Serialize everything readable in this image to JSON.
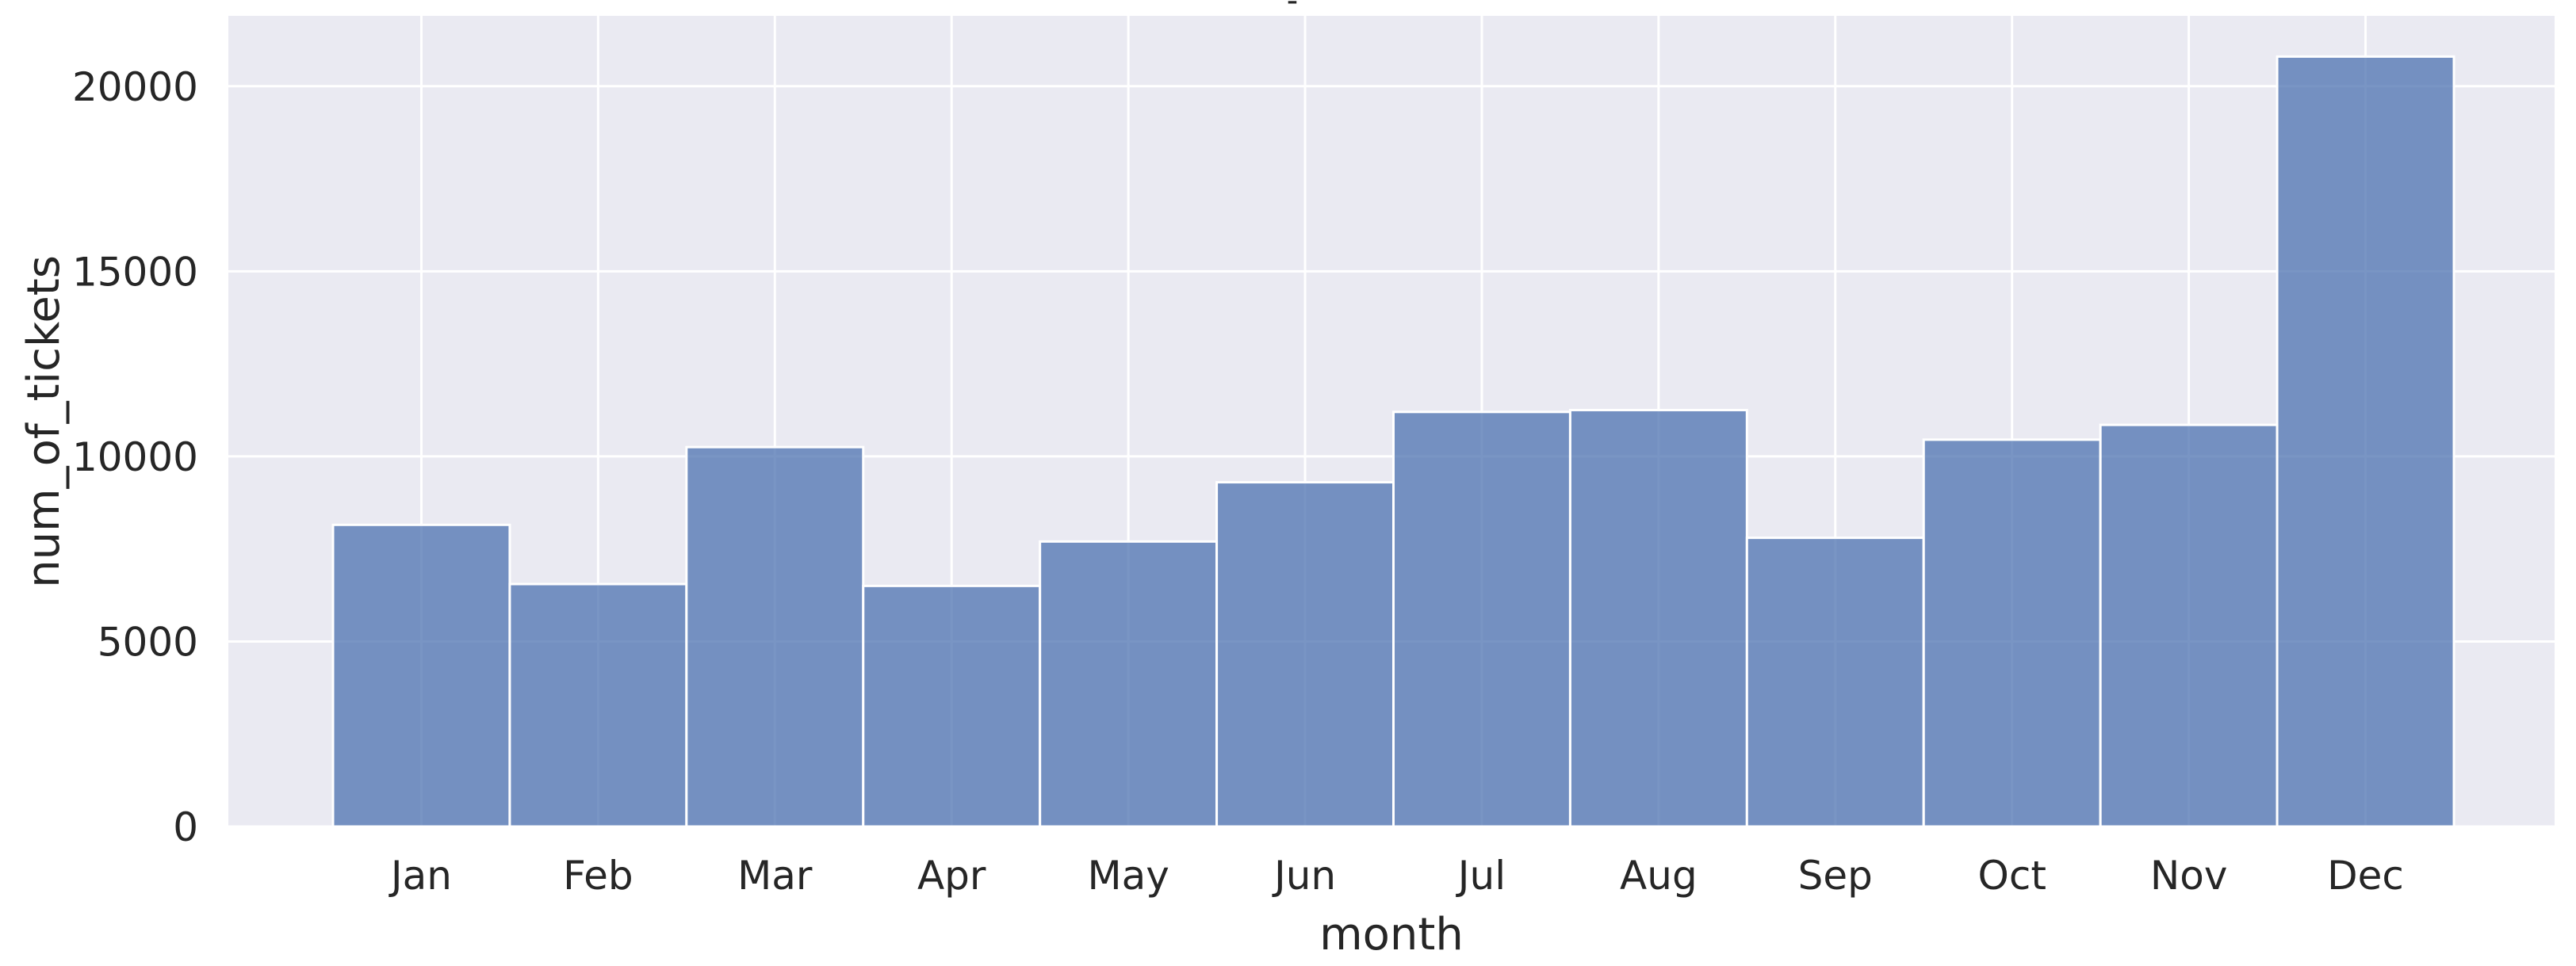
{
  "chart_data": {
    "type": "bar",
    "title": "-",
    "xlabel": "month",
    "ylabel": "num_of_tickets",
    "categories": [
      "Jan",
      "Feb",
      "Mar",
      "Apr",
      "May",
      "Jun",
      "Jul",
      "Aug",
      "Sep",
      "Oct",
      "Nov",
      "Dec"
    ],
    "values": [
      8150,
      6550,
      10250,
      6500,
      7700,
      9300,
      11200,
      11250,
      7800,
      10450,
      10850,
      20800
    ],
    "yticks": [
      0,
      5000,
      10000,
      15000,
      20000
    ],
    "ylim": [
      0,
      21900
    ],
    "grid": true,
    "colors": {
      "bar": "#4c72b0",
      "plot_background": "#eaeaf2",
      "grid": "#ffffff"
    }
  }
}
